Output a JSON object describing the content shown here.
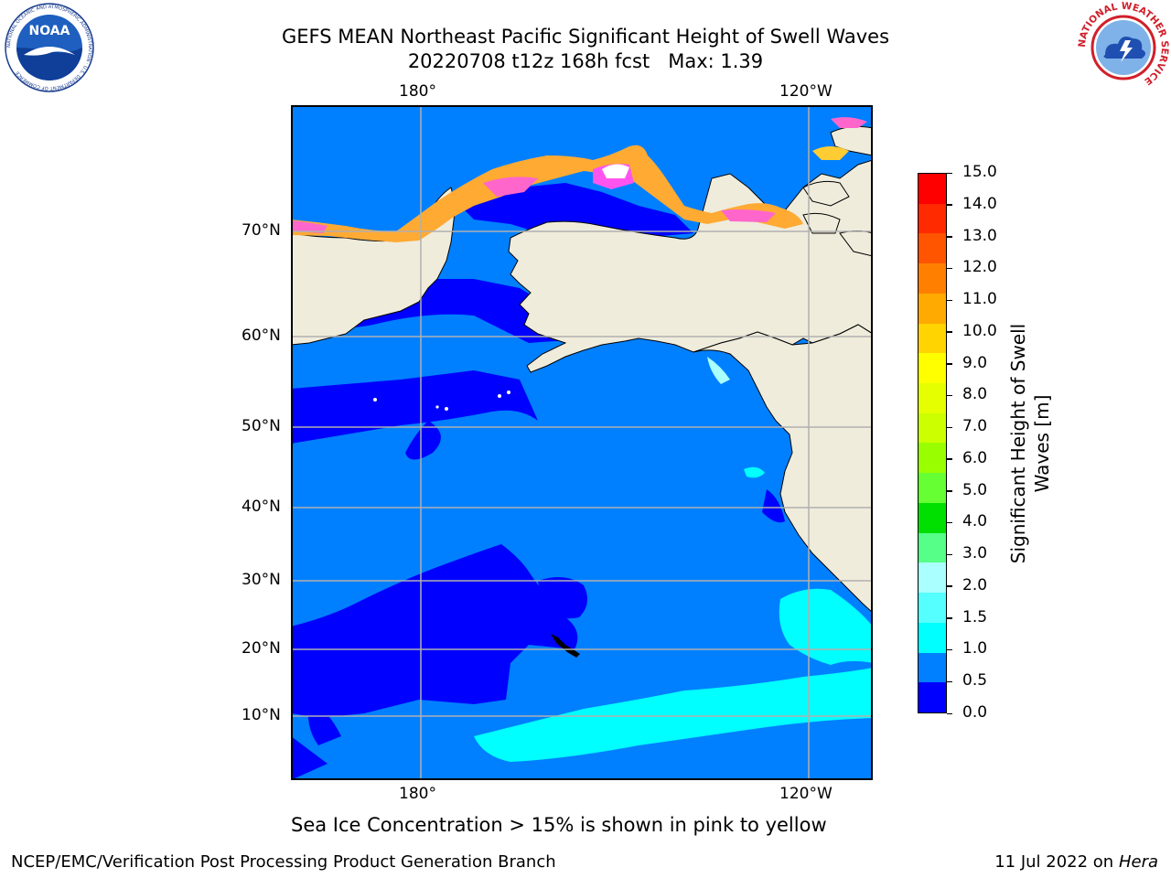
{
  "title": {
    "line1": "GEFS MEAN Northeast Pacific Significant Height of Swell Waves",
    "line2": "20220708 t12z 168h fcst   Max: 1.39"
  },
  "axes": {
    "lon_ticks": [
      "180°",
      "120°W"
    ],
    "lat_ticks": [
      "70°N",
      "60°N",
      "50°N",
      "40°N",
      "30°N",
      "20°N",
      "10°N"
    ]
  },
  "colorbar": {
    "label": "Significant Height of Swell Waves [m]",
    "ticks": [
      "15.0",
      "14.0",
      "13.0",
      "12.0",
      "11.0",
      "10.0",
      "9.0",
      "8.0",
      "7.0",
      "6.0",
      "5.0",
      "4.0",
      "3.0",
      "2.0",
      "1.5",
      "1.0",
      "0.5",
      "0.0"
    ],
    "colors_top_to_bottom": [
      "#ff0000",
      "#ff2a00",
      "#ff5500",
      "#ff8000",
      "#ffaa00",
      "#ffd400",
      "#ffff00",
      "#e6ff00",
      "#ccff00",
      "#99ff00",
      "#66ff33",
      "#00e000",
      "#55ff88",
      "#aaffff",
      "#55ffff",
      "#00ffff",
      "#0080ff",
      "#0000ff"
    ]
  },
  "note": "Sea Ice Concentration > 15% is shown in pink to yellow",
  "footer": {
    "left": "NCEP/EMC/Verification Post Processing Product Generation Branch",
    "date": "11 Jul 2022 on ",
    "machine": "Hera"
  },
  "logos": {
    "noaa_text": "NOAA",
    "noaa_ring": "NATIONAL OCEANIC AND ATMOSPHERIC ADMINISTRATION · U.S. DEPARTMENT OF COMMERCE",
    "nws_ring": "NATIONAL WEATHER SERVICE"
  },
  "colors": {
    "land": "#efecdc",
    "ocean_low": "#0000ff",
    "ocean_mid": "#0080ff",
    "ocean_high": "#00ffff",
    "grid": "#b0b0b0"
  }
}
